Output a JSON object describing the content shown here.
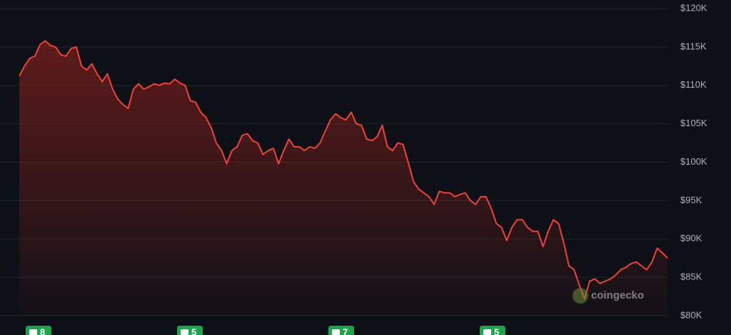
{
  "chart_data": {
    "type": "line",
    "values": [
      111200,
      112500,
      113500,
      113800,
      115300,
      115800,
      115200,
      115000,
      114000,
      113800,
      114800,
      115000,
      112500,
      112000,
      112800,
      111500,
      110500,
      111500,
      109500,
      108200,
      107500,
      107000,
      109500,
      110200,
      109500,
      109800,
      110200,
      110000,
      110300,
      110200,
      110800,
      110300,
      110000,
      108000,
      107800,
      106500,
      105800,
      104500,
      102500,
      101500,
      99800,
      101500,
      102000,
      103500,
      103700,
      102800,
      102500,
      101000,
      101500,
      101800,
      99800,
      101500,
      103000,
      102000,
      102000,
      101500,
      102000,
      101800,
      102500,
      104000,
      105500,
      106300,
      105800,
      105500,
      106500,
      105000,
      104800,
      103000,
      102800,
      103300,
      104800,
      102000,
      101500,
      102500,
      102300,
      100000,
      97500,
      96500,
      96000,
      95500,
      94500,
      96200,
      96000,
      96000,
      95500,
      95800,
      96000,
      95000,
      94500,
      95500,
      95500,
      94000,
      92000,
      91500,
      89800,
      91500,
      92500,
      92500,
      91500,
      91000,
      91000,
      89000,
      91000,
      92500,
      92000,
      89500,
      86500,
      86000,
      84000,
      82200,
      84500,
      84800,
      84200,
      84500,
      84800,
      85300,
      86000,
      86300,
      86800,
      87000,
      86500,
      86000,
      87000,
      88800,
      88200,
      87500
    ],
    "color": "#f2413a",
    "ylim": [
      80000,
      120000
    ],
    "yticks": [
      {
        "value": 80000,
        "label": "$80K"
      },
      {
        "value": 85000,
        "label": "$85K"
      },
      {
        "value": 90000,
        "label": "$90K"
      },
      {
        "value": 95000,
        "label": "$95K"
      },
      {
        "value": 100000,
        "label": "$100K"
      },
      {
        "value": 105000,
        "label": "$105K"
      },
      {
        "value": 110000,
        "label": "$110K"
      },
      {
        "value": 115000,
        "label": "$115K"
      },
      {
        "value": 120000,
        "label": "$120K"
      }
    ],
    "grid": true,
    "event_markers": [
      8,
      5,
      7,
      5
    ],
    "watermark": "coingecko"
  }
}
